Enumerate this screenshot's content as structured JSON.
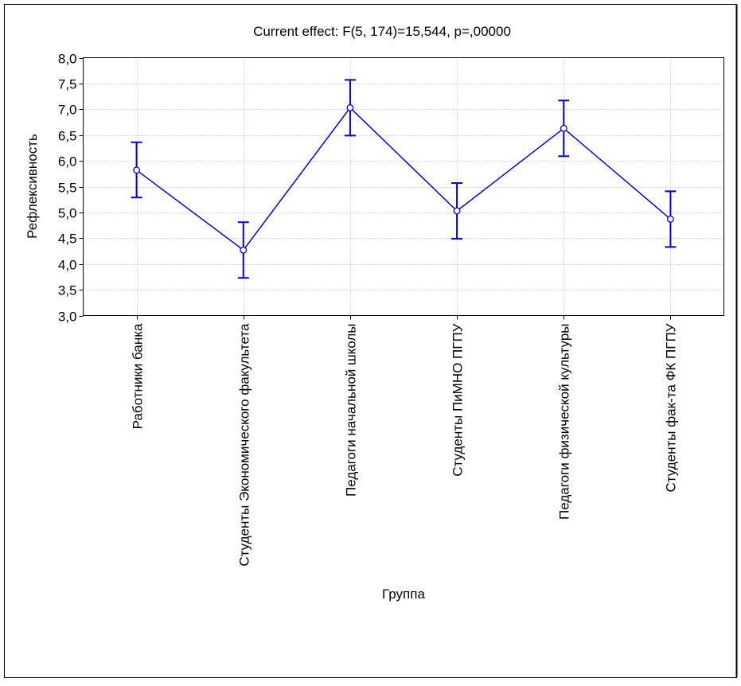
{
  "chart_data": {
    "type": "line",
    "title": "Current effect: F(5, 174)=15,544, p=,00000",
    "xlabel": "Группа",
    "ylabel": "Рефлексивность",
    "ylim": [
      3.0,
      8.0
    ],
    "ytick_step": 0.5,
    "yticks": [
      "3,0",
      "3,5",
      "4,0",
      "4,5",
      "5,0",
      "5,5",
      "6,0",
      "6,5",
      "7,0",
      "7,5",
      "8,0"
    ],
    "grid": true,
    "categories": [
      "Работники банка",
      "Студенты Экономического факультета",
      "Педагоги начальной школы",
      "Студенты ПиМНО ПГПУ",
      "Педагоги физической культуры",
      "Студенты фак-та ФК ПГПУ"
    ],
    "series": [
      {
        "values": [
          5.82,
          4.27,
          7.03,
          5.03,
          6.63,
          4.87
        ],
        "error_low": [
          5.29,
          3.73,
          6.49,
          4.49,
          6.09,
          4.33
        ],
        "error_high": [
          6.36,
          4.81,
          7.57,
          5.57,
          7.17,
          5.41
        ],
        "color": "#0000ee"
      }
    ]
  }
}
